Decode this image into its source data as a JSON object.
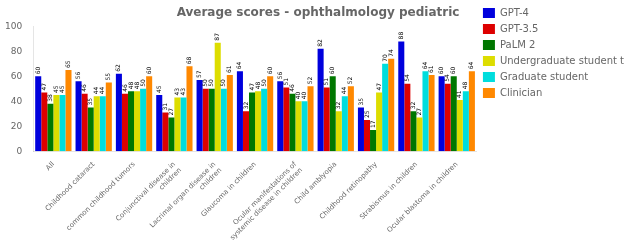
{
  "chart_data": {
    "type": "bar",
    "title": "Average scores - ophthalmology pediatric",
    "categories": [
      "All",
      "Childhood cataract",
      "common childhood tumors",
      "Conjunctival disease in children",
      "Lacrimal organ disease in children",
      "Glaucoma in children",
      "Ocular manifestations of systemic disease in children",
      "Child amblyopia",
      "Childhood retinopathy",
      "Strabismus in children",
      "Ocular blastoma in children"
    ],
    "series": [
      {
        "name": "GPT-4",
        "color": "#0000dd",
        "values": [
          60,
          56,
          62,
          45,
          57,
          64,
          56,
          82,
          35,
          88,
          60
        ]
      },
      {
        "name": "GPT-3.5",
        "color": "#dd0000",
        "values": [
          47,
          46,
          46,
          31,
          50,
          32,
          51,
          51,
          25,
          54,
          54
        ]
      },
      {
        "name": "PaLM 2",
        "color": "#007700",
        "values": [
          38,
          35,
          48,
          27,
          50,
          47,
          46,
          60,
          17,
          32,
          60
        ]
      },
      {
        "name": "Undergraduate student t",
        "color": "#dddd00",
        "values": [
          45,
          44,
          48,
          43,
          87,
          48,
          40,
          32,
          47,
          27,
          41
        ]
      },
      {
        "name": "Graduate student",
        "color": "#00dddd",
        "values": [
          45,
          44,
          50,
          43,
          50,
          50,
          40,
          44,
          70,
          64,
          48
        ]
      },
      {
        "name": "Clinician",
        "color": "#ff8800",
        "values": [
          65,
          55,
          60,
          68,
          61,
          60,
          52,
          52,
          74,
          61,
          64
        ]
      }
    ],
    "ylim": [
      0,
      100
    ],
    "yticks": [
      0,
      20,
      40,
      60,
      80,
      100
    ],
    "grid": false,
    "legend": "right",
    "data_labels": true
  }
}
